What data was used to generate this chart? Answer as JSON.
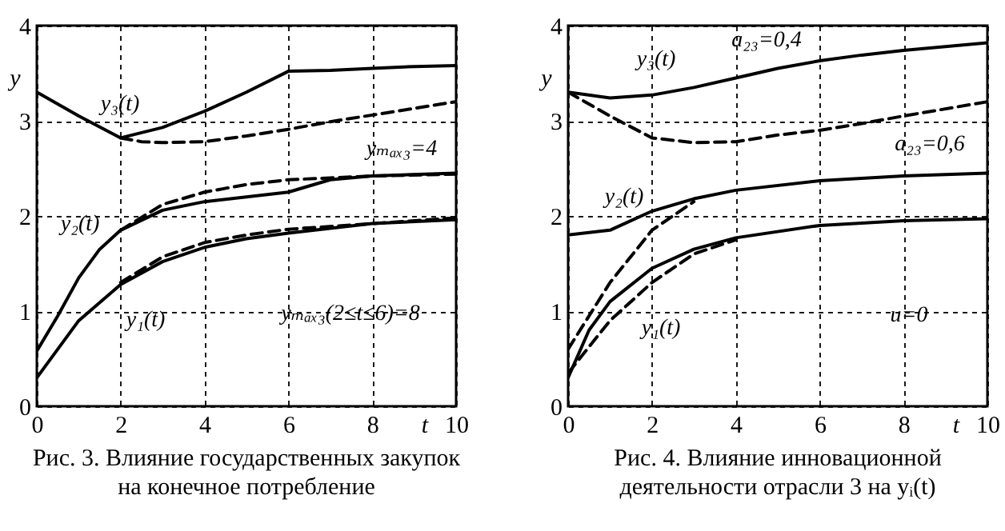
{
  "chart_data": [
    {
      "type": "line",
      "title": "Рис. 3. Влияние государственных закупок\nна конечное потребление",
      "xlabel": "t",
      "ylabel": "y",
      "xlim": [
        0,
        10
      ],
      "ylim": [
        0,
        4
      ],
      "xticks": [
        0,
        2,
        4,
        6,
        8,
        10
      ],
      "yticks": [
        0,
        1,
        2,
        3,
        4
      ],
      "grid": true,
      "annotations": [
        "y₃(t)",
        "y₂(t)",
        "y₁(t)",
        "yₘₐₓ₃=4",
        "yₘₐₓ₃(2≤t≤6)=8"
      ],
      "series": [
        {
          "x": [
            0,
            1,
            2,
            3,
            4,
            5,
            6,
            7,
            8,
            9,
            10
          ],
          "values": [
            3.3,
            3.05,
            2.82,
            2.93,
            3.1,
            3.3,
            3.52,
            3.53,
            3.55,
            3.57,
            3.58
          ],
          "color": "#000000",
          "line_style": "solid"
        },
        {
          "x": [
            2,
            2.5,
            3,
            4,
            5,
            6,
            7,
            8,
            9,
            10
          ],
          "values": [
            2.82,
            2.78,
            2.77,
            2.78,
            2.84,
            2.91,
            2.99,
            3.06,
            3.13,
            3.2
          ],
          "color": "#000000",
          "line_style": "dashed"
        },
        {
          "x": [
            0,
            0.5,
            1,
            1.5,
            2,
            3,
            4,
            5,
            6,
            7,
            8,
            10
          ],
          "values": [
            0.58,
            0.95,
            1.35,
            1.65,
            1.85,
            2.06,
            2.15,
            2.2,
            2.25,
            2.38,
            2.42,
            2.45
          ],
          "color": "#000000",
          "line_style": "solid"
        },
        {
          "x": [
            2,
            3,
            4,
            5,
            6,
            7,
            8,
            10
          ],
          "values": [
            1.85,
            2.12,
            2.25,
            2.33,
            2.38,
            2.4,
            2.42,
            2.44
          ],
          "color": "#000000",
          "line_style": "dashed"
        },
        {
          "x": [
            0,
            0.5,
            1,
            2,
            3,
            4,
            5,
            6,
            8,
            10
          ],
          "values": [
            0.3,
            0.6,
            0.9,
            1.28,
            1.52,
            1.67,
            1.76,
            1.82,
            1.92,
            1.96
          ],
          "color": "#000000",
          "line_style": "solid"
        },
        {
          "x": [
            2,
            3,
            4,
            5,
            6,
            8,
            10
          ],
          "values": [
            1.3,
            1.57,
            1.72,
            1.8,
            1.86,
            1.92,
            1.98
          ],
          "color": "#000000",
          "line_style": "dashed"
        }
      ]
    },
    {
      "type": "line",
      "title": "Рис. 4. Влияние инновационной\nдеятельности отрасли 3 на yᵢ(t)",
      "xlabel": "t",
      "ylabel": "y",
      "xlim": [
        0,
        10
      ],
      "ylim": [
        0,
        4
      ],
      "xticks": [
        0,
        2,
        4,
        6,
        8,
        10
      ],
      "yticks": [
        0,
        1,
        2,
        3,
        4
      ],
      "grid": true,
      "annotations": [
        "y₃(t)",
        "a₂₃=0,4",
        "a₂₃=0,6",
        "y₂(t)",
        "y₁(t)",
        "u=0"
      ],
      "series": [
        {
          "x": [
            0,
            1,
            2,
            3,
            4,
            5,
            6,
            7,
            8,
            10
          ],
          "values": [
            3.3,
            3.24,
            3.27,
            3.35,
            3.45,
            3.55,
            3.63,
            3.69,
            3.74,
            3.82
          ],
          "color": "#000000",
          "line_style": "solid"
        },
        {
          "x": [
            0,
            1,
            2,
            3,
            4,
            5,
            6,
            7,
            8,
            10
          ],
          "values": [
            3.3,
            3.05,
            2.82,
            2.77,
            2.78,
            2.85,
            2.9,
            2.97,
            3.05,
            3.2
          ],
          "color": "#000000",
          "line_style": "dashed"
        },
        {
          "x": [
            0,
            1,
            2,
            3,
            4,
            6,
            8,
            10
          ],
          "values": [
            1.8,
            1.85,
            2.05,
            2.18,
            2.27,
            2.37,
            2.42,
            2.45
          ],
          "color": "#000000",
          "line_style": "solid"
        },
        {
          "x": [
            0,
            1,
            2,
            3
          ],
          "values": [
            0.6,
            1.3,
            1.85,
            2.15
          ],
          "color": "#000000",
          "line_style": "dashed"
        },
        {
          "x": [
            0,
            0.5,
            1,
            2,
            3,
            4,
            6,
            8,
            10
          ],
          "values": [
            0.3,
            0.8,
            1.1,
            1.45,
            1.65,
            1.77,
            1.9,
            1.95,
            1.97
          ],
          "color": "#000000",
          "line_style": "solid"
        },
        {
          "x": [
            0,
            1,
            2,
            3,
            4
          ],
          "values": [
            0.35,
            0.9,
            1.3,
            1.6,
            1.75
          ],
          "color": "#000000",
          "line_style": "dashed"
        }
      ]
    }
  ]
}
